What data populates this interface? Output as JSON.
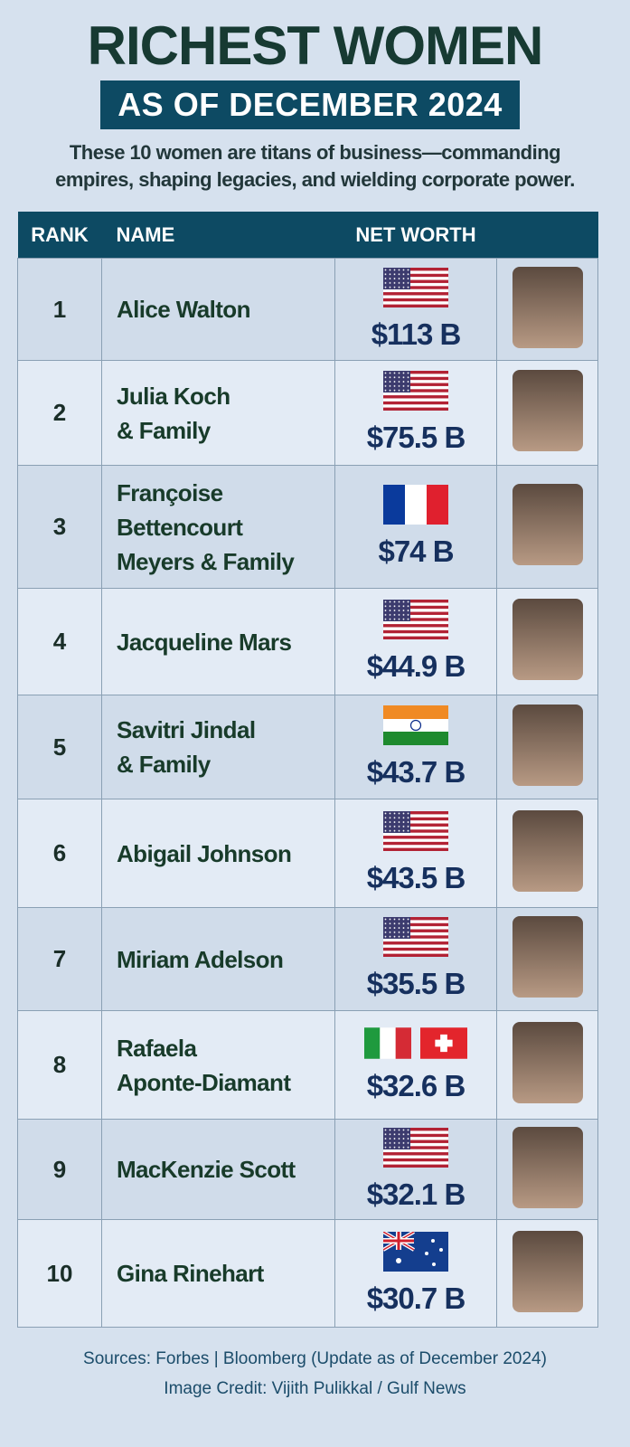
{
  "header": {
    "title": "RICHEST WOMEN",
    "banner": "AS OF DECEMBER 2024",
    "subtitle": [
      "These 10 women are titans of business—commanding",
      "empires, shaping legacies, and wielding corporate power."
    ]
  },
  "table": {
    "columns": [
      "RANK",
      "NAME",
      "NET WORTH"
    ],
    "rows": [
      {
        "rank": "1",
        "name": [
          "Alice Walton"
        ],
        "net_worth": "$113 B"
      },
      {
        "rank": "2",
        "name": [
          "Julia Koch",
          "& Family"
        ],
        "net_worth": "$75.5 B"
      },
      {
        "rank": "3",
        "name": [
          "Françoise",
          "Bettencourt",
          "Meyers & Family"
        ],
        "net_worth": "$74 B"
      },
      {
        "rank": "4",
        "name": [
          "Jacqueline Mars"
        ],
        "net_worth": "$44.9 B"
      },
      {
        "rank": "5",
        "name": [
          "Savitri Jindal",
          "& Family"
        ],
        "net_worth": "$43.7 B"
      },
      {
        "rank": "6",
        "name": [
          "Abigail Johnson"
        ],
        "net_worth": "$43.5 B"
      },
      {
        "rank": "7",
        "name": [
          "Miriam Adelson"
        ],
        "net_worth": "$35.5 B"
      },
      {
        "rank": "8",
        "name": [
          "Rafaela",
          "Aponte-Diamant"
        ],
        "net_worth": "$32.6 B"
      },
      {
        "rank": "9",
        "name": [
          "MacKenzie Scott"
        ],
        "net_worth": "$32.1 B"
      },
      {
        "rank": "10",
        "name": [
          "Gina Rinehart"
        ],
        "net_worth": "$30.7 B"
      }
    ]
  },
  "footer": [
    "Sources: Forbes | Bloomberg (Update as of December 2024)",
    "Image Credit: Vijith Pulikkal / Gulf News"
  ]
}
